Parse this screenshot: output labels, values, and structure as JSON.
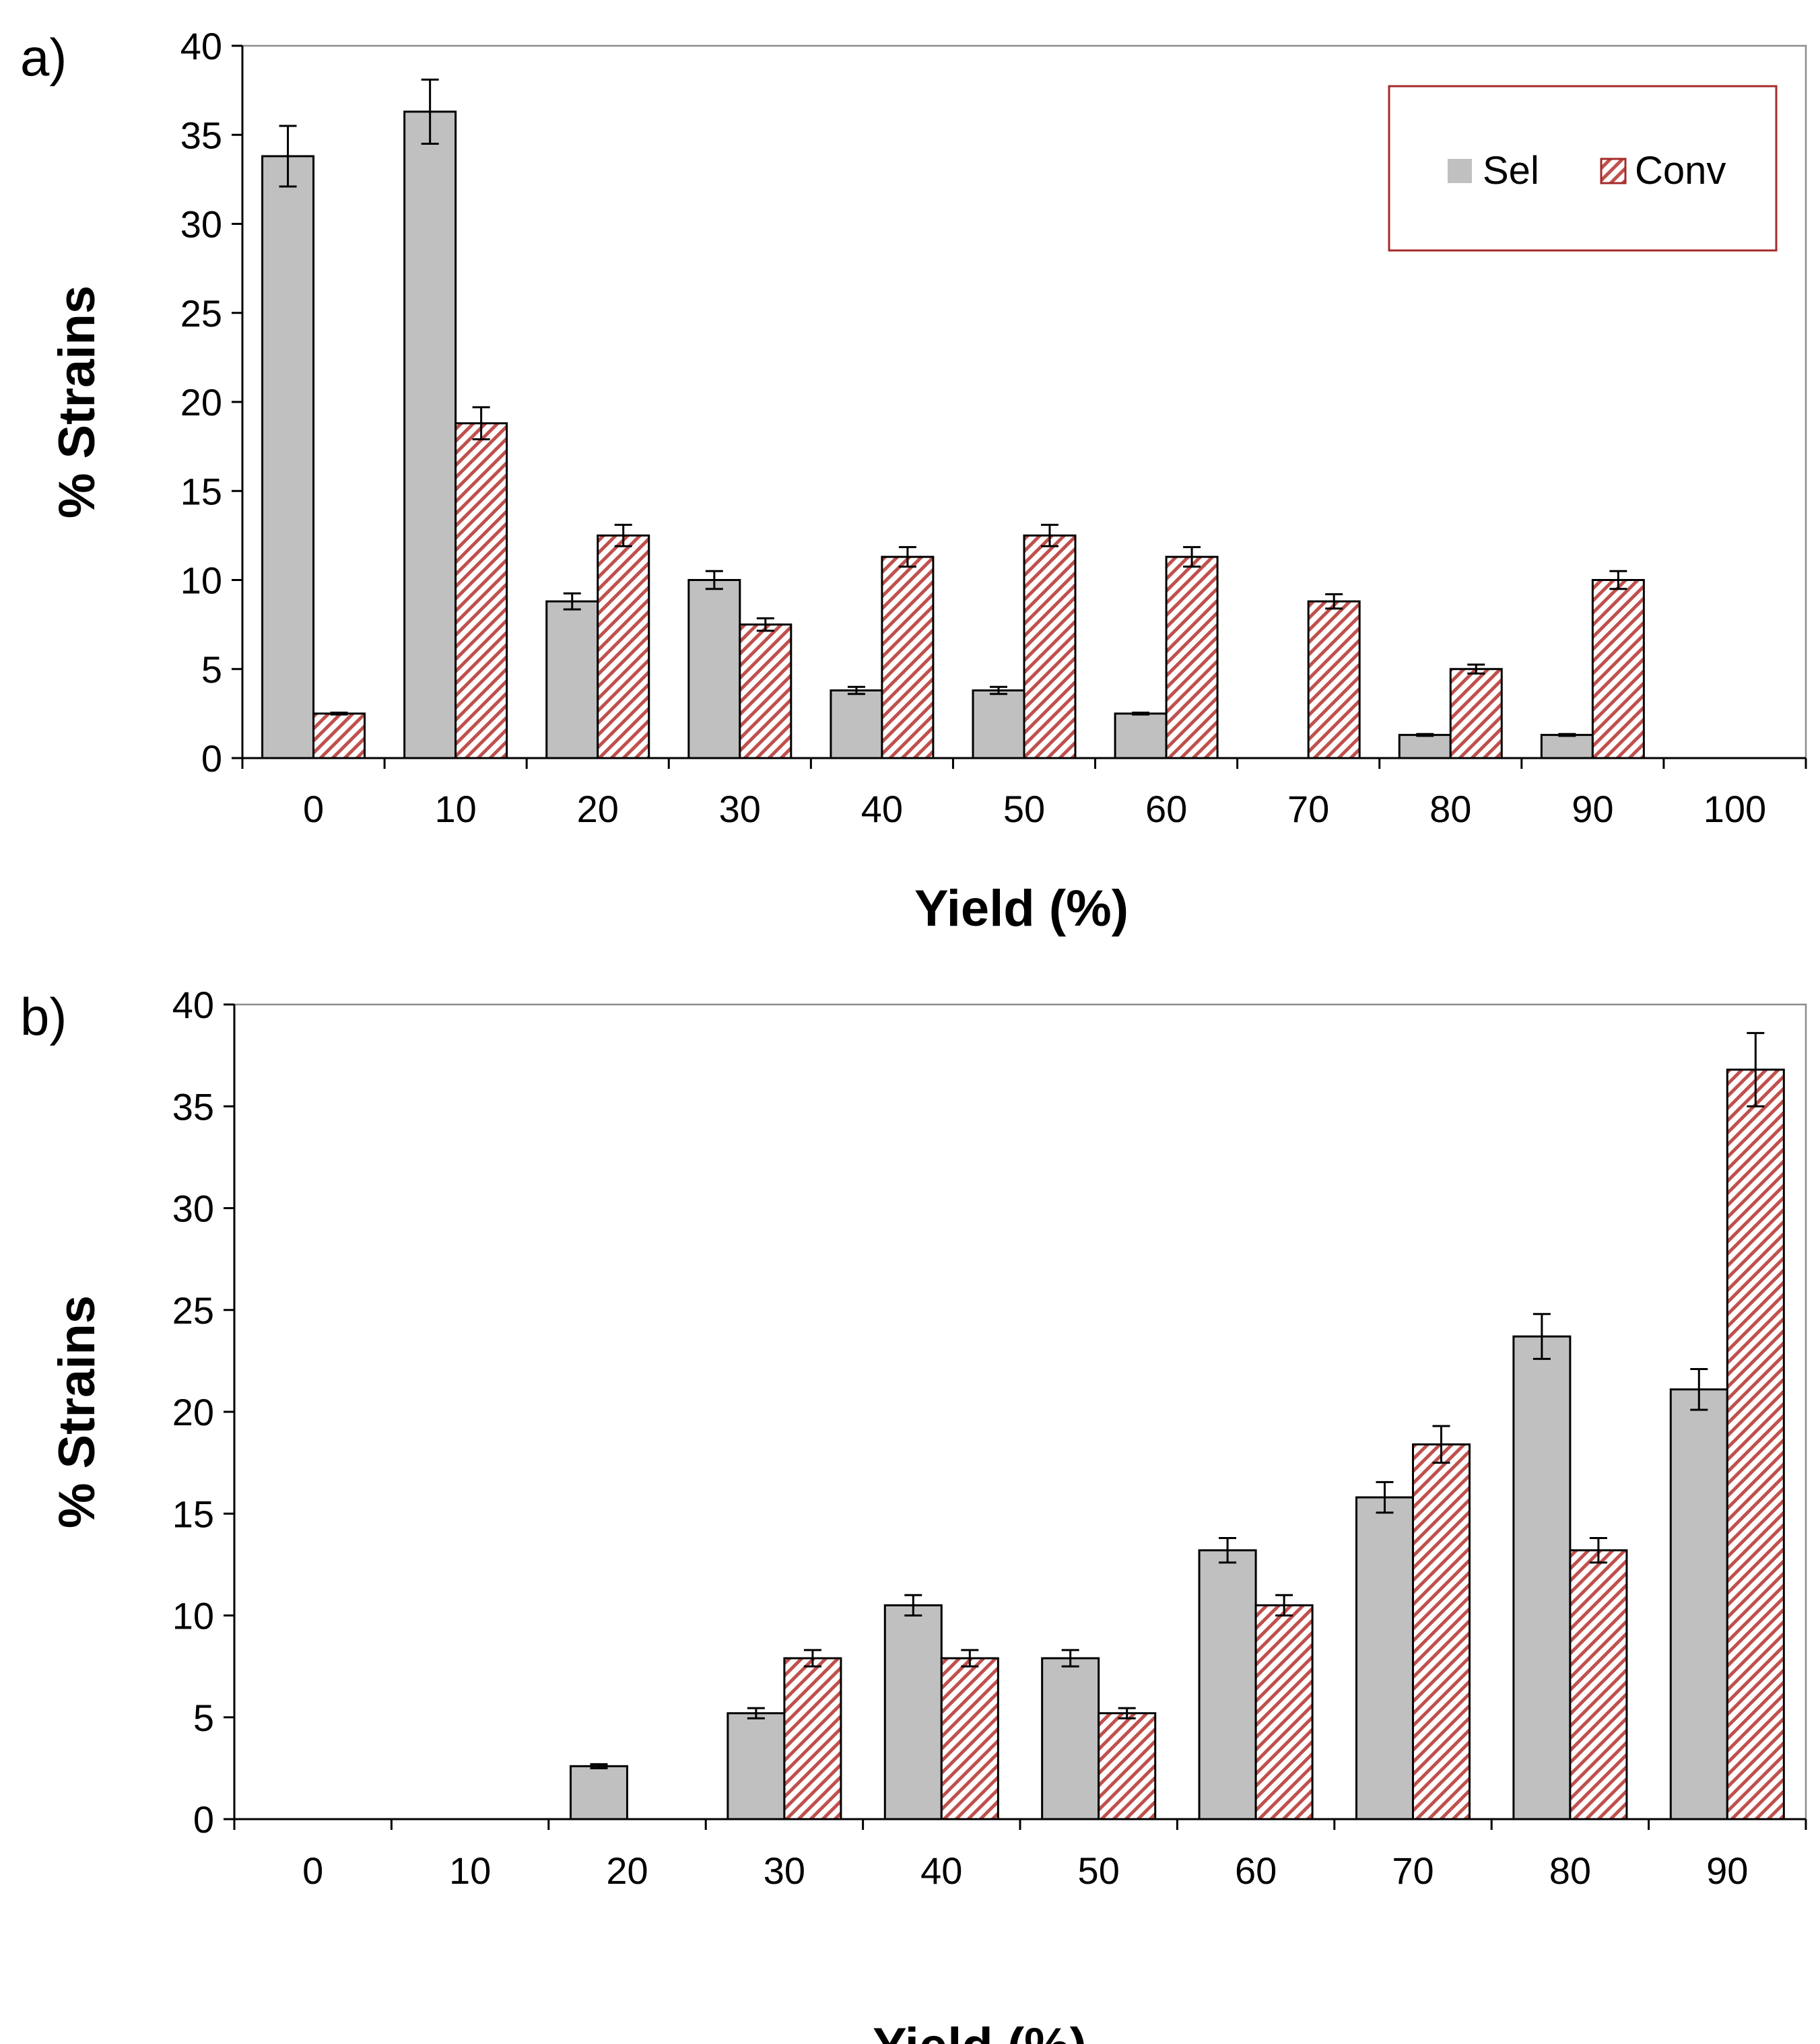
{
  "colors": {
    "sel_fill": "#c0c0c0",
    "conv_hatch": "#c0504d",
    "legend_border": "#a52a2a",
    "frame": "#8c8c8c"
  },
  "chart_data": [
    {
      "panel": "a)",
      "type": "bar",
      "xlabel": "Yield (%)",
      "ylabel": "% Strains",
      "ylim": [
        0,
        40
      ],
      "yticks": [
        "0",
        "5",
        "10",
        "15",
        "20",
        "25",
        "30",
        "35",
        "40"
      ],
      "categories": [
        "0",
        "10",
        "20",
        "30",
        "40",
        "50",
        "60",
        "70",
        "80",
        "90",
        "100"
      ],
      "legend": {
        "position": "top-right",
        "entries": [
          "Sel",
          "Conv"
        ]
      },
      "series": [
        {
          "name": "Sel",
          "values": [
            33.8,
            36.3,
            8.8,
            10.0,
            3.8,
            3.8,
            2.5,
            0,
            1.3,
            1.3,
            0
          ],
          "errors": [
            1.7,
            1.8,
            0.45,
            0.5,
            0.2,
            0.2,
            0.05,
            0,
            0.05,
            0.05,
            0
          ]
        },
        {
          "name": "Conv",
          "values": [
            2.5,
            18.8,
            12.5,
            7.5,
            11.3,
            12.5,
            11.3,
            8.8,
            5.0,
            10.0,
            0
          ],
          "errors": [
            0.05,
            0.9,
            0.6,
            0.35,
            0.55,
            0.6,
            0.55,
            0.4,
            0.25,
            0.5,
            0
          ]
        }
      ]
    },
    {
      "panel": "b)",
      "type": "bar",
      "xlabel": "Yield (%)",
      "ylabel": "% Strains",
      "ylim": [
        0,
        40
      ],
      "yticks": [
        "0",
        "5",
        "10",
        "15",
        "20",
        "25",
        "30",
        "35",
        "40"
      ],
      "categories": [
        "0",
        "10",
        "20",
        "30",
        "40",
        "50",
        "60",
        "70",
        "80",
        "90"
      ],
      "series": [
        {
          "name": "Sel",
          "values": [
            0,
            0,
            2.6,
            5.2,
            10.5,
            7.9,
            13.2,
            15.8,
            23.7,
            21.1
          ],
          "errors": [
            0,
            0,
            0.1,
            0.25,
            0.5,
            0.4,
            0.6,
            0.75,
            1.1,
            1.0
          ]
        },
        {
          "name": "Conv",
          "values": [
            0,
            0,
            0,
            7.9,
            7.9,
            5.2,
            10.5,
            18.4,
            13.2,
            36.8
          ],
          "errors": [
            0,
            0,
            0,
            0.4,
            0.4,
            0.25,
            0.5,
            0.9,
            0.6,
            1.8
          ]
        }
      ]
    }
  ]
}
